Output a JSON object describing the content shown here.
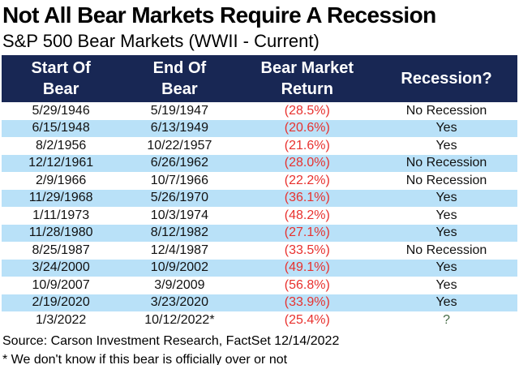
{
  "title": "Not All Bear Markets Require A Recession",
  "subtitle": "S&P 500 Bear Markets (WWII - Current)",
  "chart_data": {
    "type": "table",
    "title": "Not All Bear Markets Require A Recession",
    "subtitle": "S&P 500 Bear Markets (WWII - Current)",
    "columns": [
      "Start Of Bear",
      "End Of Bear",
      "Bear Market Return",
      "Recession?"
    ],
    "rows": [
      {
        "start_of_bear": "5/29/1946",
        "end_of_bear": "5/19/1947",
        "return_display": "(28.5%)",
        "return_pct": -28.5,
        "recession": "No Recession"
      },
      {
        "start_of_bear": "6/15/1948",
        "end_of_bear": "6/13/1949",
        "return_display": "(20.6%)",
        "return_pct": -20.6,
        "recession": "Yes"
      },
      {
        "start_of_bear": "8/2/1956",
        "end_of_bear": "10/22/1957",
        "return_display": "(21.6%)",
        "return_pct": -21.6,
        "recession": "Yes"
      },
      {
        "start_of_bear": "12/12/1961",
        "end_of_bear": "6/26/1962",
        "return_display": "(28.0%)",
        "return_pct": -28.0,
        "recession": "No Recession"
      },
      {
        "start_of_bear": "2/9/1966",
        "end_of_bear": "10/7/1966",
        "return_display": "(22.2%)",
        "return_pct": -22.2,
        "recession": "No Recession"
      },
      {
        "start_of_bear": "11/29/1968",
        "end_of_bear": "5/26/1970",
        "return_display": "(36.1%)",
        "return_pct": -36.1,
        "recession": "Yes"
      },
      {
        "start_of_bear": "1/11/1973",
        "end_of_bear": "10/3/1974",
        "return_display": "(48.2%)",
        "return_pct": -48.2,
        "recession": "Yes"
      },
      {
        "start_of_bear": "11/28/1980",
        "end_of_bear": "8/12/1982",
        "return_display": "(27.1%)",
        "return_pct": -27.1,
        "recession": "Yes"
      },
      {
        "start_of_bear": "8/25/1987",
        "end_of_bear": "12/4/1987",
        "return_display": "(33.5%)",
        "return_pct": -33.5,
        "recession": "No Recession"
      },
      {
        "start_of_bear": "3/24/2000",
        "end_of_bear": "10/9/2002",
        "return_display": "(49.1%)",
        "return_pct": -49.1,
        "recession": "Yes"
      },
      {
        "start_of_bear": "10/9/2007",
        "end_of_bear": "3/9/2009",
        "return_display": "(56.8%)",
        "return_pct": -56.8,
        "recession": "Yes"
      },
      {
        "start_of_bear": "2/19/2020",
        "end_of_bear": "3/23/2020",
        "return_display": "(33.9%)",
        "return_pct": -33.9,
        "recession": "Yes"
      },
      {
        "start_of_bear": "1/3/2022",
        "end_of_bear": "10/12/2022*",
        "return_display": "(25.4%)",
        "return_pct": -25.4,
        "recession": "?"
      }
    ]
  },
  "footer": {
    "source": "Source: Carson Investment Research, FactSet 12/14/2022",
    "footnote": "* We don't know if this bear is officially over or not"
  },
  "colors": {
    "header_bg": "#182754",
    "header_text": "#ffffff",
    "row_alt_bg": "#b9e1f8",
    "negative_return": "#e8312e",
    "unknown_green": "#456b45"
  }
}
